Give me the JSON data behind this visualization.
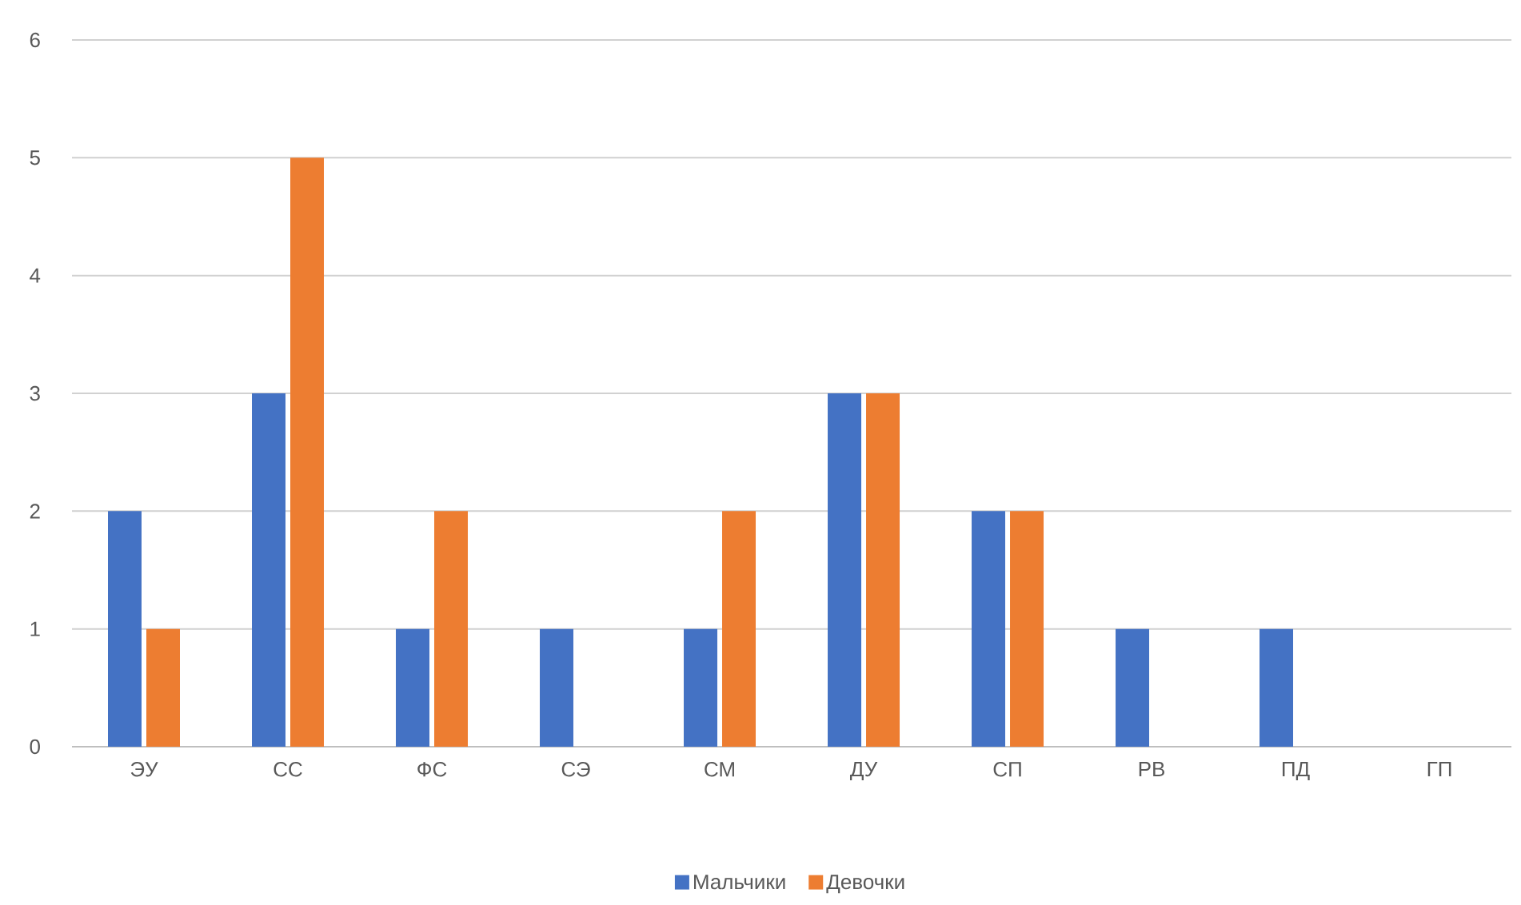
{
  "chart_data": {
    "type": "bar",
    "categories": [
      "ЭУ",
      "СС",
      "ФС",
      "СЭ",
      "СМ",
      "ДУ",
      "СП",
      "РВ",
      "ПД",
      "ГП"
    ],
    "series": [
      {
        "name": "Мальчики",
        "color": "#4472c4",
        "values": [
          2,
          3,
          1,
          1,
          1,
          3,
          2,
          1,
          1,
          0
        ]
      },
      {
        "name": "Девочки",
        "color": "#ed7d31",
        "values": [
          1,
          5,
          2,
          0,
          2,
          3,
          2,
          0,
          0,
          0
        ]
      }
    ],
    "ylim": [
      0,
      6
    ],
    "yticks": [
      0,
      1,
      2,
      3,
      4,
      5,
      6
    ],
    "grid": "y",
    "legend": "bottom"
  }
}
